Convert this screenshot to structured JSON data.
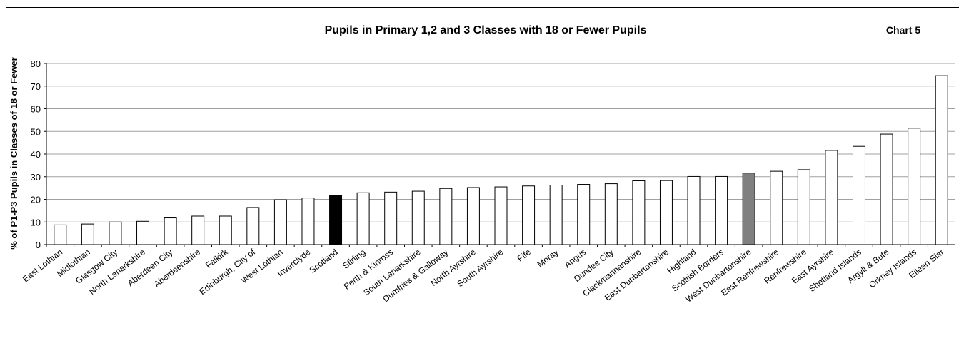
{
  "chart_data": {
    "type": "bar",
    "title": "Pupils in Primary 1,2 and 3 Classes with 18 or Fewer Pupils",
    "annotation": "Chart 5",
    "y_label": "% of P1-P3 Pupils in Classes of 18 or Fewer",
    "categories": [
      "East Lothian",
      "Midlothian",
      "Glasgow City",
      "North Lanarkshire",
      "Aberdeen City",
      "Aberdeenshire",
      "Falkirk",
      "Edinburgh, City of",
      "West Lothian",
      "Inverclyde",
      "Scotland",
      "Stirling",
      "Perth & Kinross",
      "South Lanarkshire",
      "Dumfries & Galloway",
      "North Ayrshire",
      "South Ayrshire",
      "Fife",
      "Moray",
      "Angus",
      "Dundee City",
      "Clackmannanshire",
      "East Dunbartonshire",
      "Highland",
      "Scottish Borders",
      "West Dunbartonshire",
      "East Renfrewshire",
      "Renfrewshire",
      "East Ayrshire",
      "Shetland Islands",
      "Argyll & Bute",
      "Orkney Islands",
      "Eilean Siar"
    ],
    "values": [
      8.7,
      9.1,
      10,
      10.3,
      11.8,
      12.6,
      12.6,
      16.4,
      19.8,
      20.6,
      21.7,
      22.9,
      23.2,
      23.6,
      24.8,
      25.2,
      25.5,
      25.9,
      26.3,
      26.6,
      26.9,
      28.2,
      28.3,
      30.1,
      30.1,
      31.6,
      32.4,
      33.1,
      41.6,
      43.4,
      48.8,
      51.4,
      74.6
    ],
    "colors": [
      "#ffffff",
      "#ffffff",
      "#ffffff",
      "#ffffff",
      "#ffffff",
      "#ffffff",
      "#ffffff",
      "#ffffff",
      "#ffffff",
      "#ffffff",
      "#000000",
      "#ffffff",
      "#ffffff",
      "#ffffff",
      "#ffffff",
      "#ffffff",
      "#ffffff",
      "#ffffff",
      "#ffffff",
      "#ffffff",
      "#ffffff",
      "#ffffff",
      "#ffffff",
      "#ffffff",
      "#ffffff",
      "#808080",
      "#ffffff",
      "#ffffff",
      "#ffffff",
      "#ffffff",
      "#ffffff",
      "#ffffff",
      "#ffffff"
    ],
    "ylim": [
      0,
      80
    ],
    "yticks": [
      0,
      10,
      20,
      30,
      40,
      50,
      60,
      70,
      80
    ],
    "grid": true
  }
}
